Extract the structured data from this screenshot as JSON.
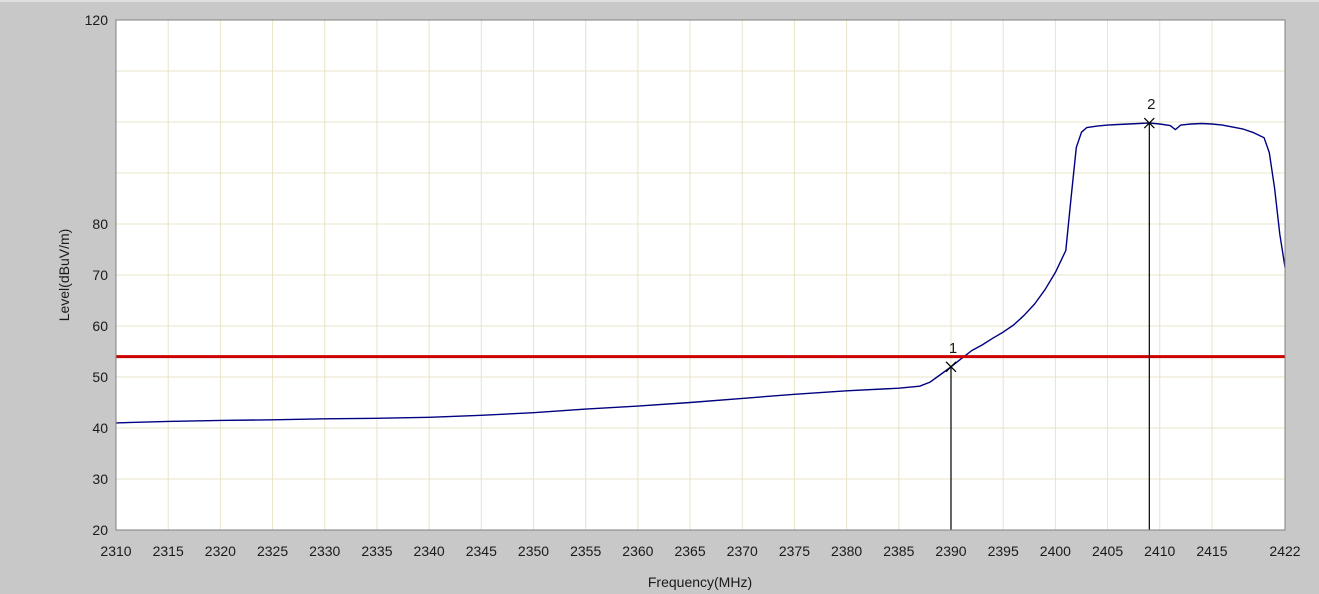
{
  "chart_data": {
    "type": "line",
    "xlabel": "Frequency(MHz)",
    "ylabel": "Level(dBuV/m)",
    "xlim": [
      2310,
      2422
    ],
    "ylim": [
      20,
      120
    ],
    "x_ticks": [
      2310,
      2315,
      2320,
      2325,
      2330,
      2335,
      2340,
      2345,
      2350,
      2355,
      2360,
      2365,
      2370,
      2375,
      2380,
      2385,
      2390,
      2395,
      2400,
      2405,
      2410,
      2415,
      2422
    ],
    "y_ticks": [
      20,
      30,
      40,
      50,
      60,
      70,
      80,
      120
    ],
    "grid": true,
    "series": [
      {
        "x": [
          2310,
          2315,
          2320,
          2325,
          2330,
          2335,
          2340,
          2345,
          2350,
          2355,
          2360,
          2365,
          2370,
          2375,
          2380,
          2385,
          2387,
          2388,
          2389,
          2390,
          2391,
          2392,
          2393,
          2394,
          2395,
          2396,
          2397,
          2398,
          2399,
          2400,
          2401,
          2401.5,
          2402,
          2402.5,
          2403,
          2404,
          2405,
          2406,
          2407,
          2408,
          2409,
          2410,
          2411,
          2411.5,
          2412,
          2413,
          2414,
          2415,
          2416,
          2417,
          2418,
          2419,
          2420,
          2420.5,
          2421,
          2421.5,
          2422
        ],
        "values": [
          41.0,
          41.3,
          41.5,
          41.6,
          41.8,
          41.9,
          42.1,
          42.5,
          43.0,
          43.7,
          44.3,
          45.0,
          45.8,
          46.6,
          47.3,
          47.8,
          48.2,
          49.0,
          50.5,
          52.0,
          53.6,
          55.2,
          56.3,
          57.6,
          58.8,
          60.2,
          62.1,
          64.3,
          67.1,
          70.5,
          74.8,
          85.0,
          95.0,
          98.0,
          98.9,
          99.2,
          99.4,
          99.5,
          99.6,
          99.7,
          99.8,
          99.6,
          99.3,
          98.5,
          99.4,
          99.6,
          99.7,
          99.6,
          99.4,
          99.0,
          98.6,
          97.9,
          96.9,
          94.0,
          87.0,
          78.0,
          71.5
        ],
        "color": "#000080"
      }
    ],
    "limit_line": {
      "y": 54,
      "color": "#cc0000"
    },
    "markers": [
      {
        "label": "1",
        "x": 2390,
        "y": 52
      },
      {
        "label": "2",
        "x": 2409,
        "y": 99.8
      }
    ]
  },
  "colors": {
    "frame": "#c8c8c8",
    "plot_bg": "#ffffff",
    "grid": "#e8e4c8",
    "trace": "#000080",
    "limit": "#cc0000",
    "marker": "#000000",
    "text": "#1a1a1a"
  }
}
